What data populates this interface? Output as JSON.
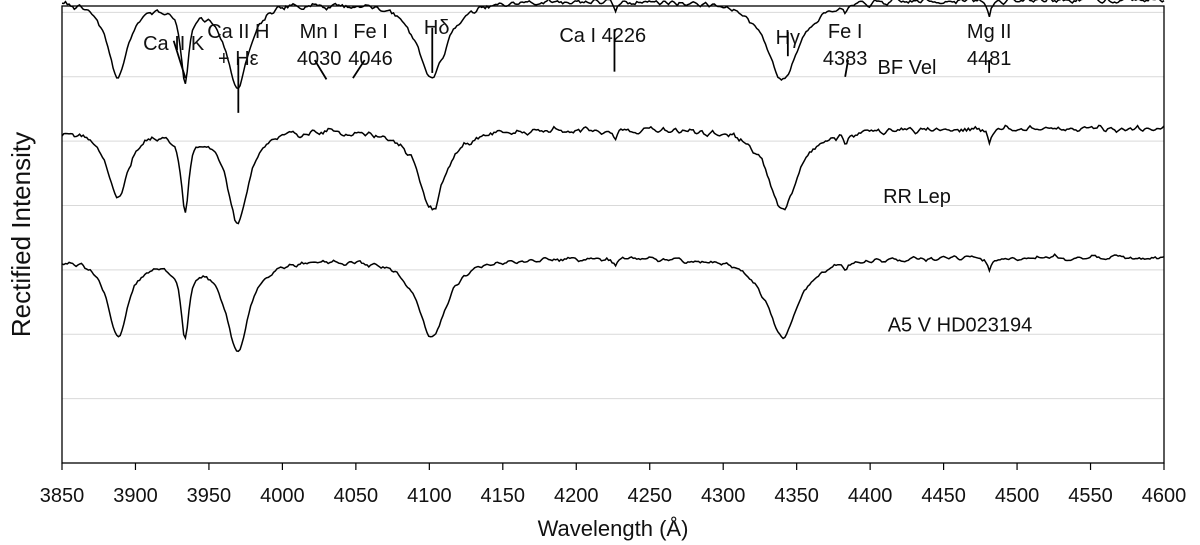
{
  "chart_data": {
    "type": "line",
    "xlabel": "Wavelength (Å)",
    "ylabel": "Rectified Intensity",
    "xlim": [
      3850,
      4600
    ],
    "xticks": [
      3850,
      3900,
      3950,
      4000,
      4050,
      4100,
      4150,
      4200,
      4250,
      4300,
      4350,
      4400,
      4450,
      4500,
      4550,
      4600
    ],
    "ylim": [
      0,
      3.55
    ],
    "yticks": [
      0.5,
      1.0,
      1.5,
      2.0,
      2.5,
      3.0,
      3.5
    ],
    "grid": true,
    "line_color": "#000000",
    "grid_color": "#d9d9d9",
    "series": [
      {
        "name": "BF Vel",
        "offset": 2.6,
        "absorption": [
          {
            "center": 3888.0,
            "depth": 0.58,
            "width": 8.5
          },
          {
            "center": 3933.7,
            "depth": 0.6,
            "width": 3.3
          },
          {
            "center": 3969.5,
            "depth": 0.66,
            "width": 9.5
          },
          {
            "center": 4030.0,
            "depth": 0.03,
            "width": 2.0
          },
          {
            "center": 4046.0,
            "depth": 0.03,
            "width": 2.0
          },
          {
            "center": 4101.7,
            "depth": 0.6,
            "width": 12.0
          },
          {
            "center": 4226.7,
            "depth": 0.08,
            "width": 1.5
          },
          {
            "center": 4340.5,
            "depth": 0.62,
            "width": 13.0
          },
          {
            "center": 4383.5,
            "depth": 0.06,
            "width": 1.5
          },
          {
            "center": 4481.0,
            "depth": 0.12,
            "width": 1.5
          }
        ],
        "noise_amp": 0.035,
        "seed": 7
      },
      {
        "name": "RR Lep",
        "offset": 1.6,
        "absorption": [
          {
            "center": 3888.0,
            "depth": 0.55,
            "width": 8.0
          },
          {
            "center": 3933.7,
            "depth": 0.62,
            "width": 3.0
          },
          {
            "center": 3969.5,
            "depth": 0.72,
            "width": 8.5
          },
          {
            "center": 4101.7,
            "depth": 0.62,
            "width": 11.0
          },
          {
            "center": 4226.7,
            "depth": 0.08,
            "width": 1.5
          },
          {
            "center": 4340.5,
            "depth": 0.62,
            "width": 12.0
          },
          {
            "center": 4383.5,
            "depth": 0.05,
            "width": 1.5
          },
          {
            "center": 4481.0,
            "depth": 0.12,
            "width": 1.5
          }
        ],
        "noise_amp": 0.04,
        "seed": 19
      },
      {
        "name": "A5 V  HD023194",
        "offset": 0.6,
        "absorption": [
          {
            "center": 3888.0,
            "depth": 0.6,
            "width": 8.5
          },
          {
            "center": 3933.7,
            "depth": 0.58,
            "width": 3.3
          },
          {
            "center": 3969.5,
            "depth": 0.72,
            "width": 9.5
          },
          {
            "center": 4101.7,
            "depth": 0.62,
            "width": 12.0
          },
          {
            "center": 4226.7,
            "depth": 0.06,
            "width": 1.5
          },
          {
            "center": 4340.5,
            "depth": 0.62,
            "width": 13.0
          },
          {
            "center": 4383.5,
            "depth": 0.05,
            "width": 1.5
          },
          {
            "center": 4481.0,
            "depth": 0.1,
            "width": 1.5
          }
        ],
        "noise_amp": 0.028,
        "seed": 31
      }
    ],
    "line_ids": [
      {
        "lines": [
          "Ca II K"
        ],
        "wavelength": 3933.7,
        "mark_from": [
          3926,
          3.28
        ],
        "mark_to": [
          3934,
          2.99
        ]
      },
      {
        "lines": [
          "Ca II H",
          "+ Hε"
        ],
        "wavelength": 3970.0,
        "mark_from": [
          3970,
          3.14
        ],
        "mark_to": [
          3970,
          2.72
        ]
      },
      {
        "lines": [
          "Mn I",
          "4030"
        ],
        "wavelength": 4030.0,
        "mark_from": [
          4022,
          3.13
        ],
        "mark_to": [
          4030,
          2.98
        ]
      },
      {
        "lines": [
          "Fe I",
          "4046"
        ],
        "wavelength": 4046.0,
        "mark_from": [
          4056,
          3.13
        ],
        "mark_to": [
          4048,
          2.99
        ]
      },
      {
        "lines": [
          "Hδ"
        ],
        "wavelength": 4101.7,
        "mark_from": [
          4102,
          3.38
        ],
        "mark_to": [
          4102,
          3.03
        ]
      },
      {
        "lines": [
          "Ca I  4226"
        ],
        "wavelength": 4226.0,
        "mark_from": [
          4226,
          3.37
        ],
        "mark_to": [
          4226,
          3.04
        ]
      },
      {
        "lines": [
          "Hγ"
        ],
        "wavelength": 4340.5,
        "mark_from": [
          4344,
          3.35
        ],
        "mark_to": [
          4344,
          3.16
        ]
      },
      {
        "lines": [
          "Fe I",
          "4383"
        ],
        "wavelength": 4383.5,
        "mark_from": [
          4385,
          3.13
        ],
        "mark_to": [
          4383,
          3.0
        ]
      },
      {
        "lines": [
          "Mg II",
          "4481"
        ],
        "wavelength": 4481.0,
        "mark_from": [
          4481,
          3.13
        ],
        "mark_to": [
          4481,
          3.03
        ]
      }
    ]
  }
}
